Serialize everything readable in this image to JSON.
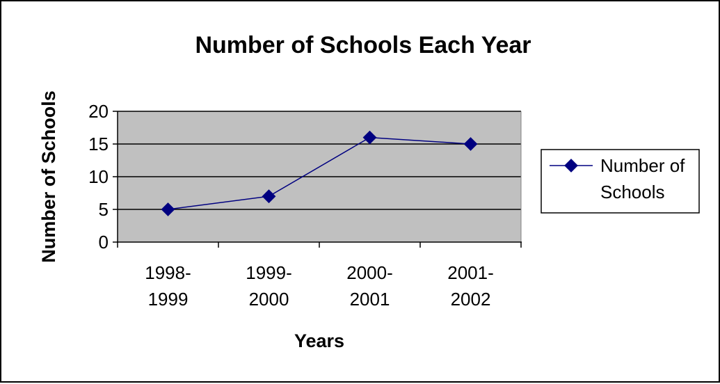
{
  "chart_data": {
    "type": "line",
    "title": "Number of Schools Each Year",
    "xlabel": "Years",
    "ylabel": "Number of Schools",
    "categories": [
      [
        "1998-",
        "1999"
      ],
      [
        "1999-",
        "2000"
      ],
      [
        "2000-",
        "2001"
      ],
      [
        "2001-",
        "2002"
      ]
    ],
    "series": [
      {
        "name": "Number of Schools",
        "legend_lines": [
          "Number of",
          "Schools"
        ],
        "values": [
          5,
          7,
          16,
          15
        ],
        "color": "#000080"
      }
    ],
    "ylim": [
      0,
      20
    ],
    "yticks": [
      0,
      5,
      10,
      15,
      20
    ],
    "grid": true,
    "legend": "right",
    "plot_background": "#c0c0c0"
  }
}
